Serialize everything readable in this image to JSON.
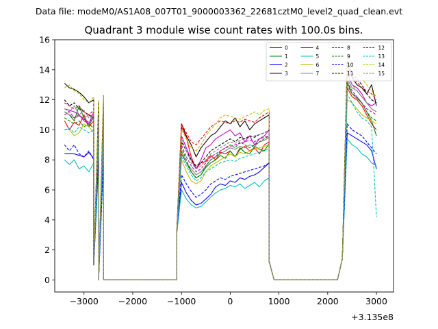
{
  "figure": {
    "suptitle": "Data file: modeM0/AS1A08_007T01_9000003362_22681cztM0_level2_quad_clean.evt"
  },
  "chart_data": {
    "type": "line",
    "title": "Quadrant 3 module wise count rates with 100.0s bins.",
    "xlabel": "",
    "ylabel": "",
    "x_offset_label": "+3.135e8",
    "xlim": [
      -3600,
      3350
    ],
    "ylim": [
      -0.8,
      16
    ],
    "xticks": [
      -3000,
      -2000,
      -1000,
      0,
      1000,
      2000,
      3000
    ],
    "xtick_labels": [
      "−3000",
      "−2000",
      "−1000",
      "0",
      "1000",
      "2000",
      "3000"
    ],
    "yticks": [
      0,
      2,
      4,
      6,
      8,
      10,
      12,
      14,
      16
    ],
    "ytick_labels": [
      "0",
      "2",
      "4",
      "6",
      "8",
      "10",
      "12",
      "14",
      "16"
    ],
    "legend_location": "top-right",
    "legend_columns": 4,
    "segments": [
      {
        "x_start": -3400,
        "n": 9,
        "step": 100
      },
      {
        "x_start": -1000,
        "n": 19,
        "step": 100
      },
      {
        "x_start": 2400,
        "n": 7,
        "step": 100
      }
    ],
    "x_ramp_ends": [
      -2800,
      -2700,
      -1100,
      800,
      900,
      2200,
      2300,
      3000
    ],
    "zero_ranges": [
      [
        -2700,
        -1100
      ],
      [
        900,
        2200
      ]
    ],
    "series": [
      {
        "name": "0",
        "color": "#ff0000",
        "dashed": false,
        "level": 10.2,
        "ramp_low": 0.02,
        "seg1": [
          10.6,
          10.0,
          10.5,
          10.3,
          11.0,
          10.2,
          10.6,
          10.1,
          10.4
        ],
        "seg2": [
          10.2,
          9.5,
          8.2,
          7.4,
          7.8,
          7.9,
          8.3,
          8.0,
          8.5,
          8.4,
          8.6,
          8.2,
          8.7,
          8.9,
          8.6,
          8.8,
          8.4,
          9.0,
          9.2
        ],
        "seg3": [
          12.8,
          12.2,
          12.0,
          11.6,
          11.0,
          10.4,
          10.0
        ]
      },
      {
        "name": "1",
        "color": "#008000",
        "dashed": false,
        "level": 10.7,
        "ramp_low": 0.05,
        "seg1": [
          11.2,
          11.0,
          10.6,
          11.6,
          10.8,
          10.2,
          11.0,
          10.7,
          10.4
        ],
        "seg2": [
          8.4,
          7.8,
          7.2,
          6.8,
          7.0,
          7.5,
          7.8,
          8.0,
          8.3,
          8.1,
          8.6,
          8.2,
          8.8,
          8.5,
          8.4,
          8.9,
          8.7,
          8.6,
          9.1
        ],
        "seg3": [
          13.2,
          12.4,
          12.1,
          11.8,
          11.2,
          10.6,
          9.6
        ]
      },
      {
        "name": "2",
        "color": "#0000ff",
        "dashed": false,
        "level": 8.4,
        "ramp_low": 0.0,
        "seg1": [
          8.4,
          8.4,
          8.4,
          8.3,
          8.2,
          8.5,
          8.1,
          8.3,
          8.2
        ],
        "seg2": [
          6.5,
          5.8,
          5.3,
          5.0,
          5.1,
          5.4,
          5.7,
          6.2,
          6.4,
          6.3,
          6.6,
          6.5,
          6.8,
          6.7,
          6.9,
          7.0,
          7.2,
          7.5,
          7.8
        ],
        "seg3": [
          9.8,
          9.6,
          9.4,
          9.2,
          9.0,
          8.6,
          7.4
        ]
      },
      {
        "name": "3",
        "color": "#000000",
        "dashed": false,
        "level": 12.4,
        "ramp_low": 0.0,
        "seg1": [
          13.1,
          12.8,
          12.7,
          12.5,
          12.2,
          11.8,
          12.0,
          11.9,
          12.3
        ],
        "seg2": [
          10.4,
          9.6,
          9.0,
          8.2,
          8.8,
          9.2,
          9.6,
          9.8,
          10.2,
          10.6,
          10.4,
          10.8,
          10.2,
          10.6,
          10.0,
          10.4,
          10.6,
          10.8,
          11.0
        ],
        "seg3": [
          14.4,
          13.5,
          13.0,
          12.8,
          12.4,
          13.0,
          11.6
        ]
      },
      {
        "name": "4",
        "color": "#bf00bf",
        "dashed": false,
        "level": 11.5,
        "ramp_low": 0.0,
        "seg1": [
          11.4,
          11.3,
          11.2,
          11.0,
          10.6,
          10.4,
          11.2,
          11.1,
          11.6
        ],
        "seg2": [
          9.6,
          8.8,
          8.0,
          7.4,
          8.0,
          8.8,
          9.0,
          9.4,
          9.6,
          9.8,
          10.0,
          9.6,
          9.8,
          9.2,
          9.6,
          9.0,
          9.4,
          9.6,
          10.0
        ],
        "seg3": [
          13.8,
          13.0,
          12.8,
          12.4,
          11.8,
          11.6,
          11.8
        ]
      },
      {
        "name": "5",
        "color": "#00bfbf",
        "dashed": false,
        "level": 7.9,
        "ramp_low": 0.0,
        "seg1": [
          8.0,
          7.7,
          8.0,
          7.4,
          7.6,
          7.2,
          7.8,
          7.6,
          7.9
        ],
        "seg2": [
          6.0,
          5.4,
          5.0,
          4.8,
          4.9,
          5.2,
          5.5,
          5.8,
          6.0,
          6.1,
          6.3,
          6.2,
          6.4,
          6.1,
          6.3,
          6.5,
          6.2,
          6.6,
          6.8
        ],
        "seg3": [
          9.4,
          9.0,
          8.8,
          8.4,
          8.2,
          7.8,
          7.6
        ]
      },
      {
        "name": "6",
        "color": "#bfbf00",
        "dashed": false,
        "level": 10.1,
        "ramp_low": 0.0,
        "seg1": [
          10.0,
          10.0,
          9.6,
          9.8,
          10.4,
          10.2,
          9.8,
          10.0,
          10.3
        ],
        "seg2": [
          8.0,
          7.2,
          6.6,
          6.4,
          6.6,
          7.2,
          7.6,
          7.8,
          8.0,
          8.2,
          8.4,
          8.2,
          8.5,
          8.4,
          8.6,
          8.7,
          8.8,
          8.9,
          9.0
        ],
        "seg3": [
          12.0,
          11.8,
          11.4,
          11.0,
          10.8,
          10.6,
          10.4
        ]
      },
      {
        "name": "7",
        "color": "#808080",
        "dashed": false,
        "level": 11.3,
        "ramp_low": 0.0,
        "seg1": [
          11.2,
          11.0,
          10.8,
          10.9,
          10.8,
          11.0,
          10.6,
          10.4,
          11.0
        ],
        "seg2": [
          8.6,
          7.8,
          7.4,
          7.0,
          7.2,
          7.6,
          8.0,
          8.2,
          8.4,
          8.6,
          8.8,
          8.7,
          8.9,
          8.8,
          9.0,
          8.9,
          9.2,
          9.3,
          9.5
        ],
        "seg3": [
          13.4,
          12.8,
          12.6,
          12.2,
          11.8,
          11.4,
          11.2
        ]
      },
      {
        "name": "8",
        "color": "#ff0000",
        "dashed": true,
        "level": 12.0,
        "ramp_low": 0.0,
        "seg1": [
          11.8,
          11.6,
          11.4,
          11.6,
          11.2,
          11.0,
          11.3,
          11.1,
          11.5
        ],
        "seg2": [
          10.4,
          9.8,
          9.2,
          9.0,
          9.4,
          9.8,
          10.2,
          10.4,
          10.6,
          10.5,
          10.4,
          10.6,
          10.5,
          10.7,
          10.6,
          10.5,
          10.8,
          11.0,
          11.2
        ],
        "seg3": [
          14.0,
          13.6,
          13.2,
          12.8,
          12.6,
          12.4,
          12.0
        ]
      },
      {
        "name": "9",
        "color": "#008000",
        "dashed": true,
        "level": 10.9,
        "ramp_low": 0.0,
        "seg1": [
          10.8,
          10.6,
          10.4,
          10.6,
          10.2,
          10.4,
          10.1,
          10.0,
          10.5
        ],
        "seg2": [
          8.8,
          8.0,
          7.2,
          6.8,
          7.0,
          7.6,
          8.0,
          8.2,
          8.6,
          8.8,
          9.0,
          8.8,
          9.2,
          9.0,
          8.8,
          9.0,
          9.2,
          9.4,
          9.6
        ],
        "seg3": [
          13.0,
          12.4,
          12.2,
          11.8,
          11.2,
          10.8,
          10.6
        ]
      },
      {
        "name": "10",
        "color": "#0000ff",
        "dashed": true,
        "level": 8.7,
        "ramp_low": 0.0,
        "seg1": [
          9.0,
          8.6,
          9.0,
          8.4,
          8.2,
          8.6,
          8.0,
          8.3,
          8.2
        ],
        "seg2": [
          7.0,
          6.4,
          5.9,
          5.5,
          5.7,
          6.0,
          6.4,
          6.6,
          6.8,
          6.7,
          6.9,
          7.0,
          7.1,
          7.2,
          7.3,
          7.4,
          7.5,
          7.6,
          7.8
        ],
        "seg3": [
          10.4,
          10.0,
          9.8,
          9.6,
          9.2,
          8.8,
          8.4
        ]
      },
      {
        "name": "11",
        "color": "#000000",
        "dashed": true,
        "level": 11.8,
        "ramp_low": 0.0,
        "seg1": [
          12.0,
          11.6,
          11.8,
          11.4,
          11.2,
          11.0,
          10.8,
          11.2,
          11.1
        ],
        "seg2": [
          9.2,
          8.6,
          8.0,
          7.6,
          7.8,
          8.2,
          8.6,
          8.8,
          9.0,
          9.2,
          9.4,
          9.2,
          9.5,
          9.4,
          9.6,
          9.5,
          9.7,
          9.8,
          10.0
        ],
        "seg3": [
          14.6,
          13.8,
          13.4,
          13.0,
          12.4,
          12.0,
          11.8
        ]
      },
      {
        "name": "12",
        "color": "#bf00bf",
        "dashed": true,
        "level": 11.1,
        "ramp_low": 0.0,
        "seg1": [
          11.0,
          11.2,
          10.8,
          11.0,
          10.7,
          10.5,
          10.8,
          10.6,
          11.0
        ],
        "seg2": [
          9.0,
          8.2,
          7.6,
          7.2,
          7.4,
          7.8,
          8.2,
          8.4,
          8.6,
          8.8,
          8.9,
          9.0,
          9.1,
          9.2,
          9.3,
          9.2,
          9.4,
          9.5,
          9.6
        ],
        "seg3": [
          13.2,
          12.6,
          12.2,
          11.8,
          11.4,
          11.2,
          11.0
        ]
      },
      {
        "name": "13",
        "color": "#00bfbf",
        "dashed": true,
        "level": 10.2,
        "ramp_low": 0.0,
        "seg1": [
          10.0,
          10.1,
          9.8,
          10.2,
          10.0,
          9.8,
          10.0,
          9.6,
          10.0
        ],
        "seg2": [
          8.2,
          7.6,
          7.0,
          6.6,
          6.8,
          7.2,
          7.4,
          7.6,
          7.8,
          7.9,
          8.0,
          7.9,
          8.1,
          8.2,
          8.3,
          8.4,
          8.5,
          8.6,
          8.8
        ],
        "seg3": [
          12.4,
          11.8,
          11.2,
          10.8,
          10.6,
          10.2,
          4.2
        ]
      },
      {
        "name": "14",
        "color": "#bfbf00",
        "dashed": true,
        "level": 12.5,
        "ramp_low": 0.0,
        "seg1": [
          12.8,
          13.0,
          12.6,
          12.4,
          12.0,
          11.8,
          12.2,
          12.0,
          12.3
        ],
        "seg2": [
          10.0,
          9.4,
          8.8,
          8.6,
          9.0,
          9.6,
          10.0,
          10.4,
          10.8,
          11.0,
          10.9,
          10.8,
          10.7,
          10.9,
          11.0,
          11.2,
          11.0,
          11.3,
          11.4
        ],
        "seg3": [
          14.8,
          14.2,
          13.8,
          13.4,
          13.0,
          12.6,
          12.2
        ]
      },
      {
        "name": "15",
        "color": "#808080",
        "dashed": true,
        "level": 11.6,
        "ramp_low": 0.0,
        "seg1": [
          11.4,
          11.2,
          11.6,
          11.0,
          11.3,
          10.8,
          11.1,
          10.9,
          11.2
        ],
        "seg2": [
          9.4,
          8.6,
          7.8,
          7.4,
          7.6,
          8.0,
          8.4,
          8.6,
          8.8,
          9.0,
          9.2,
          9.1,
          9.3,
          9.4,
          9.5,
          9.6,
          9.7,
          9.8,
          10.0
        ],
        "seg3": [
          13.6,
          13.0,
          12.6,
          12.2,
          11.8,
          11.4,
          11.2
        ]
      }
    ]
  }
}
